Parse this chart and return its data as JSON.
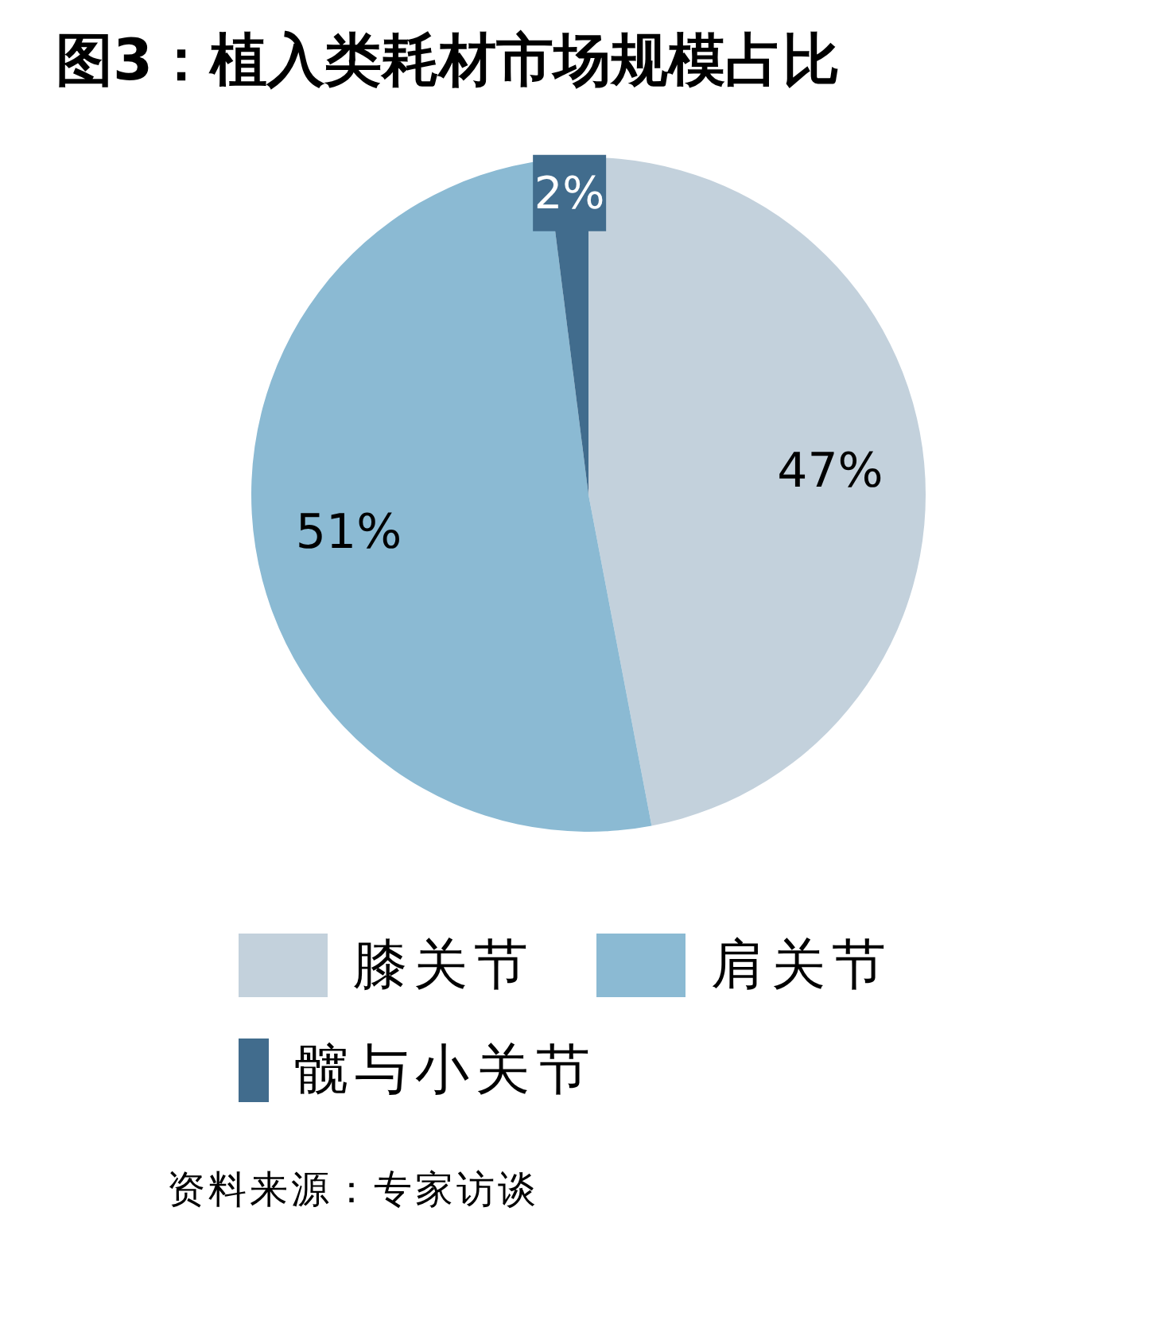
{
  "chart_data": {
    "type": "pie",
    "title": "图3：植入类耗材市场规模占比",
    "categories": [
      "膝关节",
      "肩关节",
      "髋与小关节"
    ],
    "values": [
      47,
      51,
      2
    ],
    "value_labels": [
      "47%",
      "51%",
      "2%"
    ],
    "colors": [
      "#c3d1dc",
      "#8bbad3",
      "#416c8d"
    ],
    "legend": "bottom",
    "annotations": [
      "资料来源：专家访谈"
    ]
  }
}
